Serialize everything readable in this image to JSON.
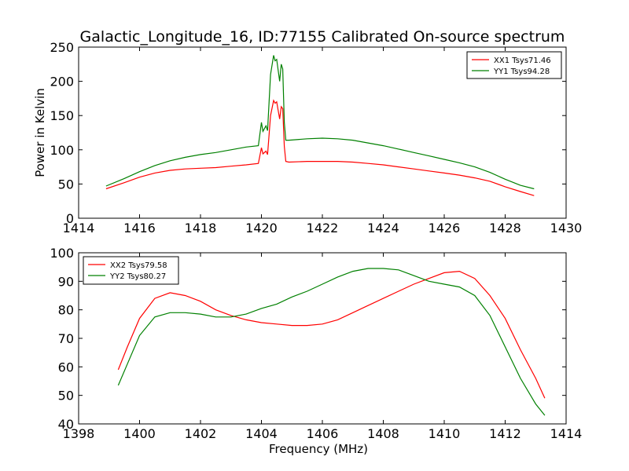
{
  "figure": {
    "title": "Galactic_Longitude_16, ID:77155 Calibrated On-source spectrum",
    "background": "#ffffff"
  },
  "chart_data": [
    {
      "type": "line",
      "ylabel": "Power in Kelvin",
      "xlabel": "",
      "xlim": [
        1414,
        1430
      ],
      "ylim": [
        0,
        250
      ],
      "xticks": [
        "1414",
        "1416",
        "1418",
        "1420",
        "1422",
        "1424",
        "1426",
        "1428",
        "1430"
      ],
      "yticks": [
        "0",
        "50",
        "100",
        "150",
        "200",
        "250"
      ],
      "grid": false,
      "legend_position": "top-right",
      "series": [
        {
          "name": "XX1 Tsys71.46",
          "color": "#ff0000",
          "x": [
            1414.9,
            1415.5,
            1416.0,
            1416.5,
            1417.0,
            1417.5,
            1418.0,
            1418.5,
            1419.0,
            1419.5,
            1419.9,
            1420.0,
            1420.05,
            1420.15,
            1420.2,
            1420.3,
            1420.4,
            1420.45,
            1420.5,
            1420.6,
            1420.65,
            1420.7,
            1420.75,
            1420.8,
            1420.9,
            1421.5,
            1422.0,
            1422.5,
            1423.0,
            1423.5,
            1424.0,
            1424.5,
            1425.0,
            1425.5,
            1426.0,
            1426.5,
            1427.0,
            1427.5,
            1428.0,
            1428.5,
            1428.95
          ],
          "values": [
            43,
            52,
            60,
            66,
            70,
            72,
            73,
            74,
            76,
            78,
            80,
            103,
            94,
            98,
            93,
            150,
            172,
            168,
            170,
            145,
            163,
            160,
            105,
            83,
            82,
            83,
            83,
            83,
            82,
            80,
            78,
            75,
            72,
            69,
            66,
            63,
            59,
            54,
            46,
            39,
            33
          ]
        },
        {
          "name": "YY1 Tsys94.28",
          "color": "#008000",
          "x": [
            1414.9,
            1415.5,
            1416.0,
            1416.5,
            1417.0,
            1417.5,
            1418.0,
            1418.5,
            1419.0,
            1419.5,
            1419.9,
            1420.0,
            1420.05,
            1420.15,
            1420.2,
            1420.3,
            1420.4,
            1420.45,
            1420.5,
            1420.6,
            1420.65,
            1420.7,
            1420.75,
            1420.8,
            1420.9,
            1421.5,
            1422.0,
            1422.5,
            1423.0,
            1423.5,
            1424.0,
            1424.5,
            1425.0,
            1425.5,
            1426.0,
            1426.5,
            1427.0,
            1427.5,
            1428.0,
            1428.5,
            1428.95
          ],
          "values": [
            47,
            58,
            68,
            77,
            84,
            89,
            93,
            96,
            100,
            104,
            106,
            140,
            127,
            135,
            128,
            210,
            238,
            230,
            232,
            200,
            225,
            218,
            140,
            114,
            114,
            116,
            117,
            116,
            114,
            110,
            106,
            101,
            96,
            91,
            86,
            81,
            75,
            67,
            57,
            48,
            43
          ]
        }
      ]
    },
    {
      "type": "line",
      "ylabel": "",
      "xlabel": "Frequency (MHz)",
      "xlim": [
        1398,
        1414
      ],
      "ylim": [
        40,
        100
      ],
      "xticks": [
        "1398",
        "1400",
        "1402",
        "1404",
        "1406",
        "1408",
        "1410",
        "1412",
        "1414"
      ],
      "yticks": [
        "40",
        "50",
        "60",
        "70",
        "80",
        "90",
        "100"
      ],
      "grid": false,
      "legend_position": "top-left",
      "series": [
        {
          "name": "XX2 Tsys79.58",
          "color": "#ff0000",
          "x": [
            1399.3,
            1399.6,
            1400.0,
            1400.5,
            1401.0,
            1401.5,
            1402.0,
            1402.5,
            1403.0,
            1403.5,
            1404.0,
            1404.5,
            1405.0,
            1405.5,
            1406.0,
            1406.5,
            1407.0,
            1407.5,
            1408.0,
            1408.5,
            1409.0,
            1409.5,
            1410.0,
            1410.5,
            1411.0,
            1411.5,
            1412.0,
            1412.5,
            1413.0,
            1413.3
          ],
          "values": [
            59,
            67,
            77,
            84,
            86,
            85,
            83,
            80,
            78,
            76.5,
            75.5,
            75,
            74.5,
            74.5,
            75,
            76.5,
            79,
            81.5,
            84,
            86.5,
            89,
            91,
            93,
            93.5,
            91,
            85,
            77,
            66,
            56,
            49
          ]
        },
        {
          "name": "YY2 Tsys80.27",
          "color": "#008000",
          "x": [
            1399.3,
            1399.6,
            1400.0,
            1400.5,
            1401.0,
            1401.5,
            1402.0,
            1402.5,
            1403.0,
            1403.5,
            1404.0,
            1404.5,
            1405.0,
            1405.5,
            1406.0,
            1406.5,
            1407.0,
            1407.5,
            1408.0,
            1408.5,
            1409.0,
            1409.5,
            1410.0,
            1410.5,
            1411.0,
            1411.5,
            1412.0,
            1412.5,
            1413.0,
            1413.3
          ],
          "values": [
            53.5,
            61,
            71,
            77.5,
            79,
            79,
            78.5,
            77.5,
            77.5,
            78.5,
            80.5,
            82,
            84.5,
            86.5,
            89,
            91.5,
            93.5,
            94.5,
            94.5,
            94,
            92,
            90,
            89,
            88,
            85,
            78,
            67,
            56,
            47,
            43
          ]
        }
      ]
    }
  ]
}
